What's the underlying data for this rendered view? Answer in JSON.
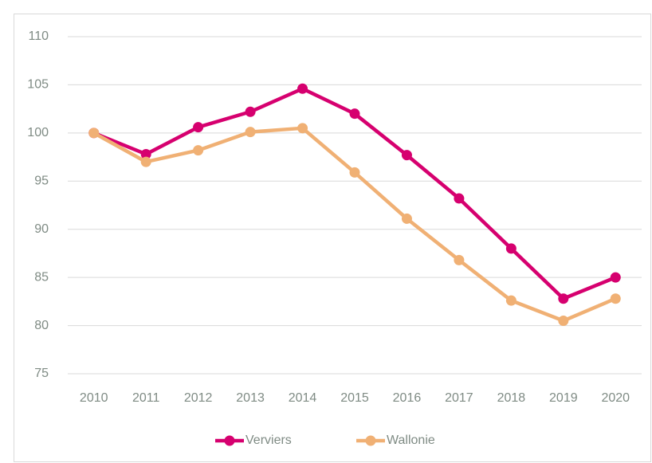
{
  "chart_data": {
    "type": "line",
    "categories": [
      "2010",
      "2011",
      "2012",
      "2013",
      "2014",
      "2015",
      "2016",
      "2017",
      "2018",
      "2019",
      "2020"
    ],
    "series": [
      {
        "name": "Verviers",
        "color": "#d6006f",
        "values": [
          100,
          97.8,
          100.6,
          102.2,
          104.6,
          102.0,
          97.7,
          93.2,
          88.0,
          82.8,
          85.0
        ]
      },
      {
        "name": "Wallonie",
        "color": "#f0b074",
        "values": [
          100,
          97.0,
          98.2,
          100.1,
          100.5,
          95.9,
          91.1,
          86.8,
          82.6,
          80.5,
          82.8
        ]
      }
    ],
    "ylim": [
      75,
      110
    ],
    "yticks": [
      75,
      80,
      85,
      90,
      95,
      100,
      105,
      110
    ],
    "grid": true,
    "legend": "bottom"
  }
}
